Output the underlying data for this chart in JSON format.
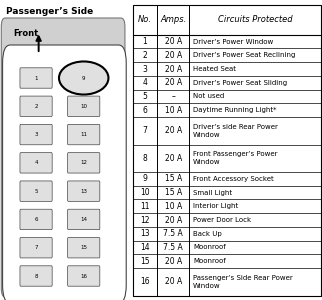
{
  "title": "Passenger’s Side",
  "table_headers": [
    "No.",
    "Amps.",
    "Circuits Protected"
  ],
  "rows": [
    [
      "1",
      "20 A",
      "Driver’s Power Window"
    ],
    [
      "2",
      "20 A",
      "Driver’s Power Seat Reclining"
    ],
    [
      "3",
      "20 A",
      "Heated Seat"
    ],
    [
      "4",
      "20 A",
      "Driver’s Power Seat Sliding"
    ],
    [
      "5",
      "–",
      "Not used"
    ],
    [
      "6",
      "10 A",
      "Daytime Running Light*"
    ],
    [
      "7",
      "20 A",
      "Driver’s side Rear Power\nWindow"
    ],
    [
      "8",
      "20 A",
      "Front Passenger’s Power\nWindow"
    ],
    [
      "9",
      "15 A",
      "Front Accessory Socket"
    ],
    [
      "10",
      "15 A",
      "Small Light"
    ],
    [
      "11",
      "10 A",
      "Interior Light"
    ],
    [
      "12",
      "20 A",
      "Power Door Lock"
    ],
    [
      "13",
      "7.5 A",
      "Back Up"
    ],
    [
      "14",
      "7.5 A",
      "Moonroof"
    ],
    [
      "15",
      "20 A",
      "Moonroof"
    ],
    [
      "16",
      "20 A",
      "Passenger’s Side Rear Power\nWindow"
    ]
  ],
  "left_fuses": [
    "1",
    "2",
    "3",
    "4",
    "5",
    "6",
    "7",
    "8"
  ],
  "right_fuses": [
    "9",
    "10",
    "11",
    "12",
    "13",
    "14",
    "15",
    "16"
  ],
  "circled_fuse": "9",
  "panel_bg": "#d0d0d0",
  "fuse_bg": "#e0e0e0",
  "white": "#ffffff",
  "black": "#000000"
}
